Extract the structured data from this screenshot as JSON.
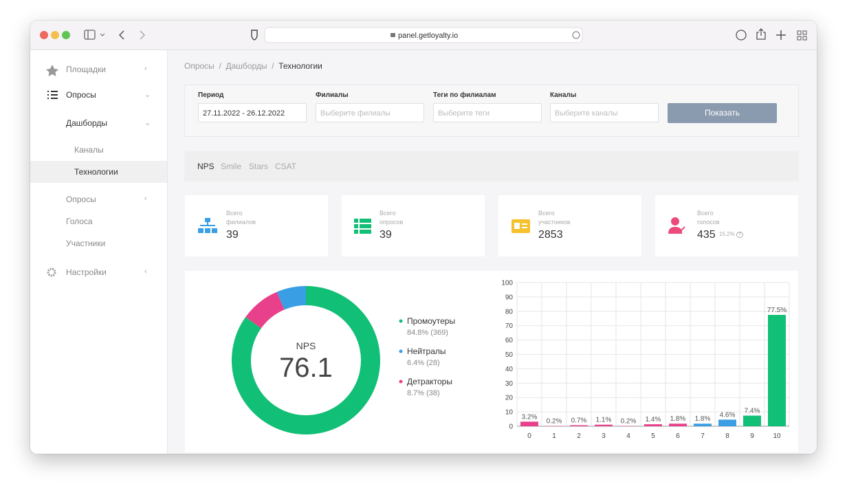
{
  "browser": {
    "url": "panel.getloyalty.io"
  },
  "sidebar": [
    "Площадки",
    "Опросы",
    "Дашборды",
    "Каналы",
    "Технологии",
    "Опросы",
    "Голоса",
    "Участники",
    "Настройки"
  ],
  "breadcrumbs": {
    "items": [
      "Опросы",
      "Дашборды",
      "Технологии"
    ],
    "separator": "/"
  },
  "filters": {
    "fields": [
      {
        "label": "Период",
        "value": "27.11.2022 - 26.12.2022"
      },
      {
        "label": "Филиалы",
        "placeholder": "Выберите филиалы"
      },
      {
        "label": "Теги по филиалам",
        "placeholder": "Выберите теги"
      },
      {
        "label": "Каналы",
        "placeholder": "Выберите каналы"
      }
    ],
    "button": "Показать"
  },
  "tabs": [
    "NPS",
    "Smile",
    "Stars",
    "CSAT"
  ],
  "stats": [
    {
      "label": "Всего филиалов",
      "value": 39
    },
    {
      "label": "Всего опросов",
      "value": 39
    },
    {
      "label": "Всего участников",
      "value": 2853
    },
    {
      "label": "Всего голосов",
      "value": 435,
      "note": "15.2%"
    }
  ],
  "chart_data": [
    {
      "type": "pie",
      "donut": true,
      "center_label": "NPS",
      "center_value": 76.1,
      "categories": [
        "Промоутеры",
        "Нейтралы",
        "Детракторы"
      ],
      "values": [
        84.8,
        6.4,
        8.7
      ],
      "value_labels": [
        "84.8% (369)",
        "6.4% (28)",
        "8.7% (38)"
      ],
      "colors": [
        "#12bf76",
        "#3a9ee4",
        "#e8408a"
      ]
    },
    {
      "type": "bar",
      "categories": [
        "0",
        "1",
        "2",
        "3",
        "4",
        "5",
        "6",
        "7",
        "8",
        "9",
        "10"
      ],
      "values": [
        3.2,
        0.2,
        0.7,
        1.1,
        0.2,
        1.4,
        1.8,
        1.8,
        4.6,
        7.4,
        77.5
      ],
      "value_labels": [
        "3.2%",
        "0.2%",
        "0.7%",
        "1.1%",
        "0.2%",
        "1.4%",
        "1.8%",
        "1.8%",
        "4.6%",
        "7.4%",
        "77.5%"
      ],
      "colors": [
        "#e8408a",
        "#e8408a",
        "#e8408a",
        "#e8408a",
        "#e8408a",
        "#e8408a",
        "#e8408a",
        "#3a9ee4",
        "#3a9ee4",
        "#12bf76",
        "#12bf76"
      ],
      "ylim": [
        0,
        100
      ],
      "yticks": [
        0,
        10,
        20,
        30,
        40,
        50,
        60,
        70,
        80,
        90,
        100
      ],
      "grid": true
    }
  ]
}
